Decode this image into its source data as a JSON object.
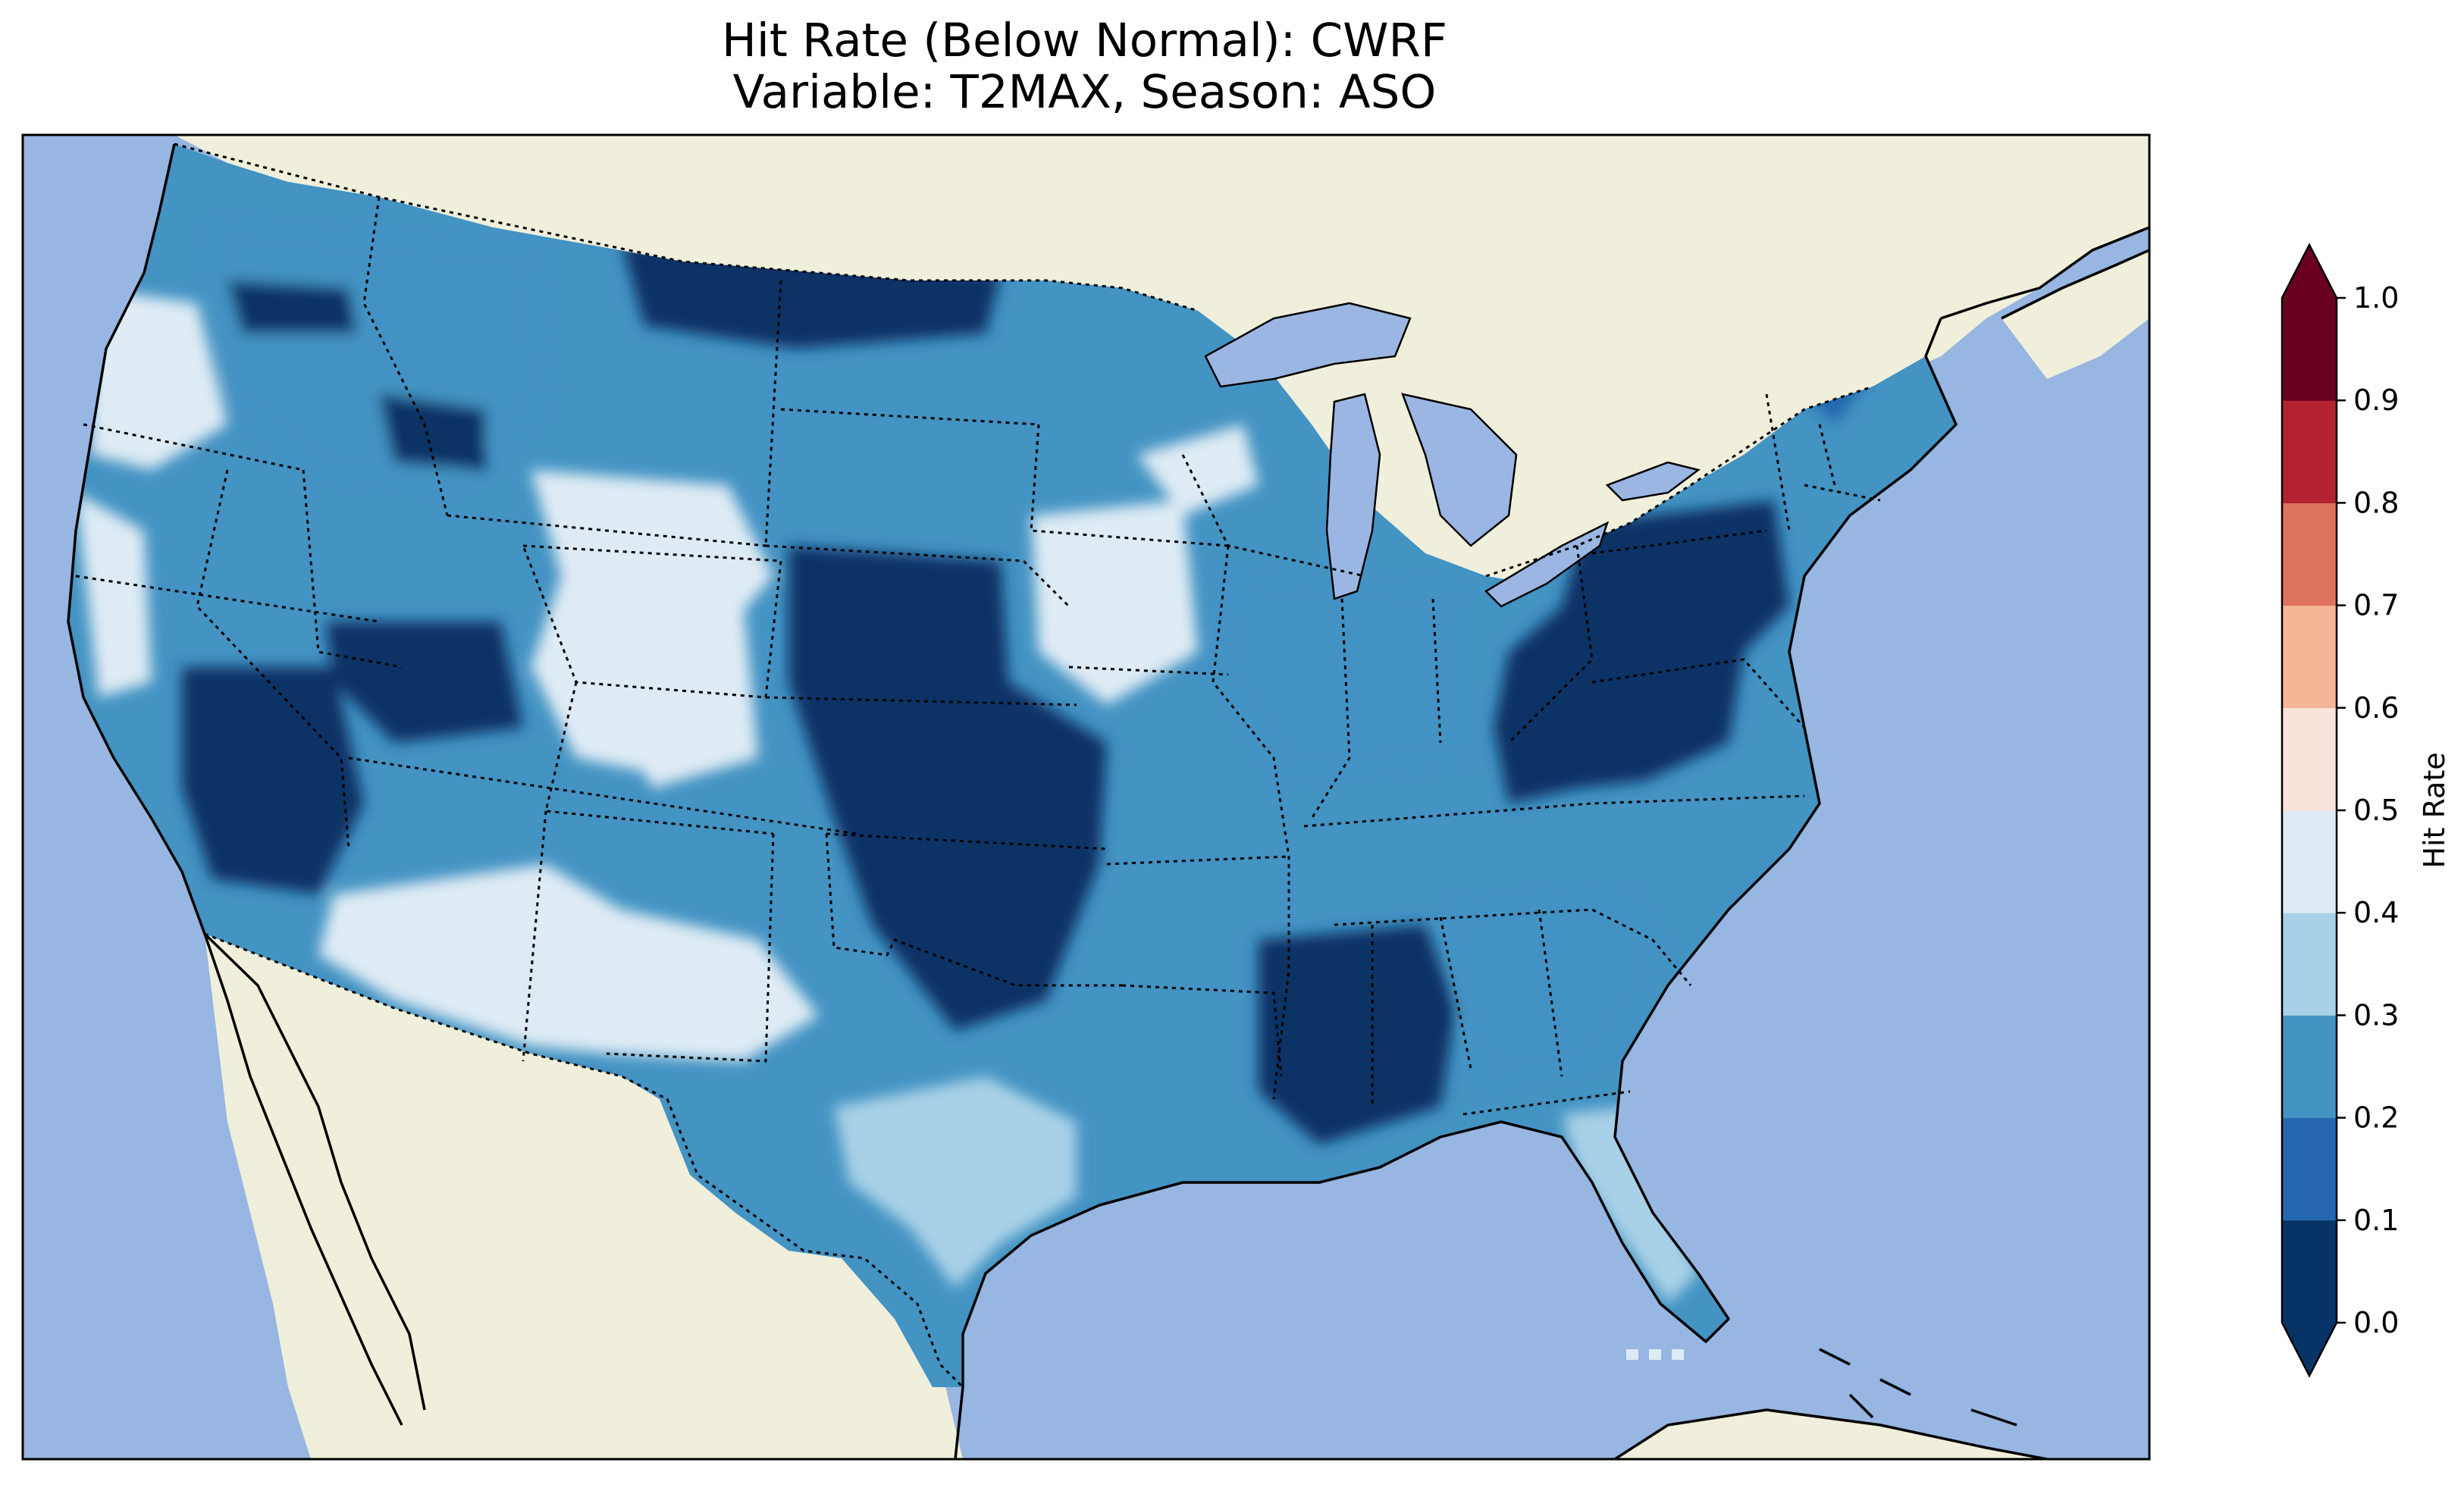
{
  "title": {
    "line1": "Hit Rate (Below Normal): CWRF",
    "line2": "Variable: T2MAX, Season: ASO"
  },
  "colors": {
    "ocean": "#97b6e1",
    "land": "#efefdb",
    "lake": "#9bb6e2",
    "border": "#000000"
  },
  "colorbar": {
    "label": "Hit Rate",
    "ticks": [
      "0.0",
      "0.1",
      "0.2",
      "0.3",
      "0.4",
      "0.5",
      "0.6",
      "0.7",
      "0.8",
      "0.9",
      "1.0"
    ],
    "bins": [
      {
        "range": [
          0.0,
          0.1
        ],
        "color": "#083366"
      },
      {
        "range": [
          0.1,
          0.2
        ],
        "color": "#2467ae"
      },
      {
        "range": [
          0.2,
          0.3
        ],
        "color": "#4393c3"
      },
      {
        "range": [
          0.3,
          0.4
        ],
        "color": "#a8d1e7"
      },
      {
        "range": [
          0.4,
          0.5
        ],
        "color": "#deebf4"
      },
      {
        "range": [
          0.5,
          0.6
        ],
        "color": "#f9e4dc"
      },
      {
        "range": [
          0.6,
          0.7
        ],
        "color": "#f5b597"
      },
      {
        "range": [
          0.7,
          0.8
        ],
        "color": "#de735d"
      },
      {
        "range": [
          0.8,
          0.9
        ],
        "color": "#b3232f"
      },
      {
        "range": [
          0.9,
          1.0
        ],
        "color": "#6a0020"
      }
    ],
    "extend_min_color": "#083366",
    "extend_max_color": "#6a0020"
  },
  "map_regions": [
    {
      "name": "pacific-northwest-coast",
      "hit_rate": 0.45
    },
    {
      "name": "northern-rockies",
      "hit_rate": 0.25
    },
    {
      "name": "northern-plains-montana-north",
      "hit_rate": 0.05
    },
    {
      "name": "great-basin-nevada",
      "hit_rate": 0.05
    },
    {
      "name": "colorado-utah-high-plateau",
      "hit_rate": 0.45
    },
    {
      "name": "central-plains-kansas-nebraska",
      "hit_rate": 0.05
    },
    {
      "name": "upper-midwest",
      "hit_rate": 0.45
    },
    {
      "name": "ohio-valley",
      "hit_rate": 0.25
    },
    {
      "name": "mid-atlantic-appalachia",
      "hit_rate": 0.05
    },
    {
      "name": "new-england",
      "hit_rate": 0.15
    },
    {
      "name": "lower-mississippi-valley",
      "hit_rate": 0.05
    },
    {
      "name": "southeast",
      "hit_rate": 0.25
    },
    {
      "name": "florida",
      "hit_rate": 0.35
    },
    {
      "name": "southwest-arizona-new-mexico",
      "hit_rate": 0.45
    },
    {
      "name": "texas-gulf",
      "hit_rate": 0.35
    }
  ]
}
